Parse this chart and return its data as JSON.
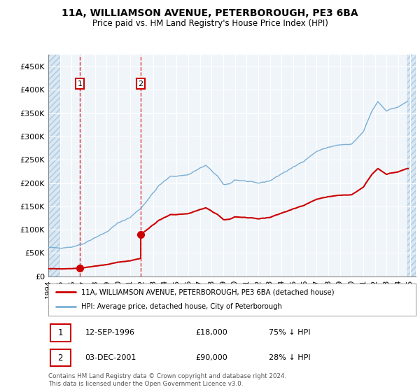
{
  "title": "11A, WILLIAMSON AVENUE, PETERBOROUGH, PE3 6BA",
  "subtitle": "Price paid vs. HM Land Registry's House Price Index (HPI)",
  "hpi_color": "#7bafd4",
  "price_color": "#cc0000",
  "sale1_year": 1996.706,
  "sale1_price": 18000,
  "sale2_year": 2001.921,
  "sale2_price": 90000,
  "xlim": [
    1994.0,
    2025.5
  ],
  "ylim": [
    0,
    475000
  ],
  "yticks": [
    0,
    50000,
    100000,
    150000,
    200000,
    250000,
    300000,
    350000,
    400000,
    450000
  ],
  "ytick_labels": [
    "£0",
    "£50K",
    "£100K",
    "£150K",
    "£200K",
    "£250K",
    "£300K",
    "£350K",
    "£400K",
    "£450K"
  ],
  "legend_line1": "11A, WILLIAMSON AVENUE, PETERBOROUGH, PE3 6BA (detached house)",
  "legend_line2": "HPI: Average price, detached house, City of Peterborough",
  "footer1": "Contains HM Land Registry data © Crown copyright and database right 2024.",
  "footer2": "This data is licensed under the Open Government Licence v3.0.",
  "hatch_end": 2025.0,
  "hatch_start": 1994.0,
  "hatch_color": "#d8e8f4"
}
